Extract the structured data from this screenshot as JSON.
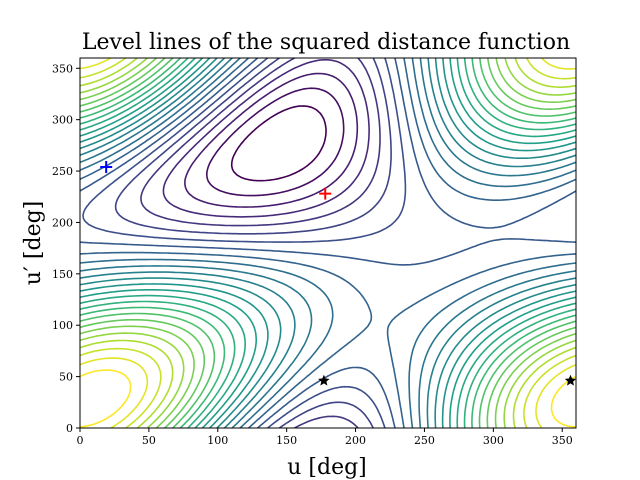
{
  "chart_data": {
    "type": "contour",
    "title": "Level lines of the squared distance function",
    "xlabel": "u [deg]",
    "ylabel": "u′ [deg]",
    "xlim": [
      0,
      360
    ],
    "ylim": [
      0,
      360
    ],
    "xticks": [
      0,
      50,
      100,
      150,
      200,
      250,
      300,
      350
    ],
    "yticks": [
      0,
      50,
      100,
      150,
      200,
      250,
      300,
      350
    ],
    "colormap": "viridis",
    "grid": false,
    "markers": [
      {
        "x": 178,
        "y": 228,
        "symbol": "plus",
        "color": "#ff0000"
      },
      {
        "x": 19,
        "y": 254,
        "symbol": "plus",
        "color": "#0000ff"
      },
      {
        "x": 177,
        "y": 46,
        "symbol": "star",
        "color": "#000000"
      },
      {
        "x": 356,
        "y": 46,
        "symbol": "star",
        "color": "#000000"
      }
    ]
  }
}
